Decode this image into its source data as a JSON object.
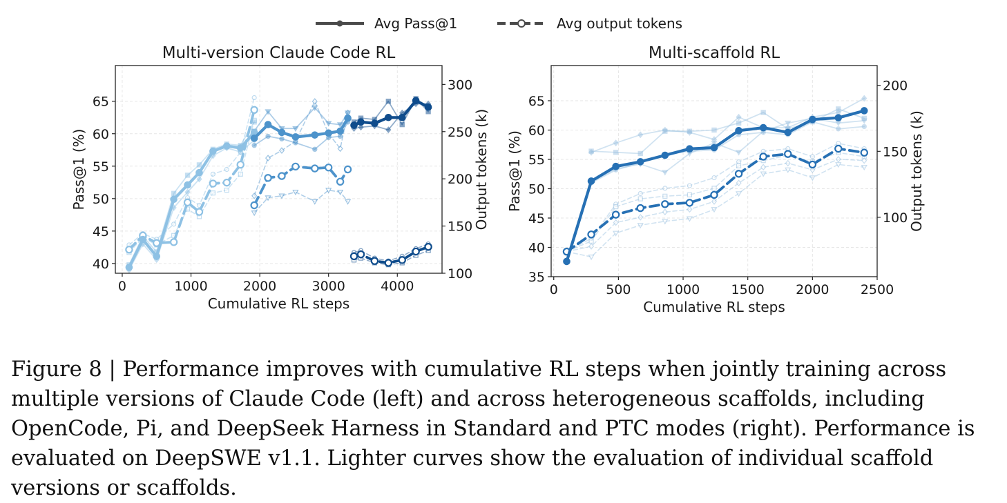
{
  "legend": {
    "pass_label": "Avg Pass@1",
    "tokens_label": "Avg output tokens"
  },
  "caption": "Figure 8 | Performance improves with cumulative RL steps when jointly training across multiple versions of Claude Code (left) and across heterogeneous scaffolds, including OpenCode, Pi, and DeepSeek Harness in Standard and PTC modes (right). Performance is evaluated on DeepSWE v1.1. Lighter curves show the evaluation of individual scaffold versions or scaffolds.",
  "chart_data": [
    {
      "type": "line",
      "title": "Multi-version Claude Code RL",
      "xlabel": "Cumulative RL steps",
      "ylabel": "Pass@1 (%)",
      "y2label": "Output tokens (k)",
      "xlim": [
        -100,
        4650
      ],
      "ylim": [
        38.5,
        70.5
      ],
      "y2lim": [
        100,
        320
      ],
      "xticks": [
        0,
        1000,
        2000,
        3000,
        4000
      ],
      "yticks": [
        40,
        45,
        50,
        55,
        60,
        65
      ],
      "y2ticks": [
        100,
        150,
        200,
        250,
        300
      ],
      "grid": true,
      "colors": {
        "light": "#8ec1e4",
        "mid": "#4d93cb",
        "dark": "#0f4c8c"
      },
      "avg_pass": [
        {
          "color": "light",
          "x": [
            100,
            300,
            500,
            750,
            950,
            1120,
            1320,
            1520,
            1720,
            1920
          ],
          "y": [
            39.4,
            43.7,
            41.1,
            49.9,
            52.1,
            54.0,
            57.3,
            58.1,
            57.8,
            60.2
          ]
        },
        {
          "color": "mid",
          "x": [
            1920,
            2120,
            2320,
            2520,
            2800,
            3000,
            3170,
            3280
          ],
          "y": [
            59.3,
            61.4,
            60.2,
            59.5,
            59.8,
            60.1,
            60.4,
            62.4
          ]
        },
        {
          "color": "dark",
          "x": [
            3370,
            3470,
            3670,
            3870,
            4070,
            4270,
            4450
          ],
          "y": [
            61.3,
            61.8,
            61.6,
            62.5,
            62.5,
            65.1,
            64.1
          ]
        }
      ],
      "avg_tokens": [
        {
          "color": "light",
          "x": [
            100,
            300,
            500,
            750,
            950,
            1120,
            1320,
            1520,
            1720,
            1920
          ],
          "y": [
            125,
            140,
            132,
            133,
            175,
            165,
            195,
            196,
            215,
            273
          ]
        },
        {
          "color": "mid",
          "x": [
            1920,
            2120,
            2320,
            2520,
            2800,
            3000,
            3170,
            3280
          ],
          "y": [
            172,
            201,
            203,
            213,
            211,
            212,
            197,
            210
          ]
        },
        {
          "color": "dark",
          "x": [
            3370,
            3470,
            3670,
            3870,
            4070,
            4270,
            4450
          ],
          "y": [
            118,
            120,
            113,
            111,
            114,
            123,
            128
          ]
        }
      ],
      "light_pass": [
        {
          "color": "light",
          "x": [
            100,
            300,
            500,
            750,
            950,
            1120,
            1320,
            1520,
            1720,
            1920
          ],
          "y": [
            39.8,
            44.2,
            41.8,
            50.8,
            53.6,
            55.2,
            57.6,
            58.4,
            58.2,
            61.8
          ]
        },
        {
          "color": "light",
          "x": [
            100,
            300,
            500,
            750,
            950,
            1120,
            1320,
            1520,
            1720,
            1920
          ],
          "y": [
            39.0,
            43.0,
            40.6,
            48.6,
            51.0,
            53.0,
            56.6,
            57.8,
            57.2,
            59.0
          ]
        },
        {
          "color": "mid",
          "x": [
            1920,
            2120,
            2320,
            2520,
            2800,
            3000,
            3170,
            3280
          ],
          "y": [
            60.4,
            63.4,
            60.8,
            60.8,
            64.0,
            61.6,
            61.4,
            63.2
          ]
        },
        {
          "color": "mid",
          "x": [
            1920,
            2120,
            2320,
            2520,
            2800,
            3000,
            3170,
            3280
          ],
          "y": [
            58.2,
            59.6,
            59.2,
            58.6,
            57.6,
            59.4,
            59.6,
            61.8
          ]
        },
        {
          "color": "dark",
          "x": [
            3370,
            3470,
            3670,
            3870,
            4070,
            4270,
            4450
          ],
          "y": [
            61.8,
            62.4,
            62.2,
            65.0,
            61.4,
            65.4,
            63.4
          ]
        },
        {
          "color": "dark",
          "x": [
            3370,
            3470,
            3670,
            3870,
            4070,
            4270,
            4450
          ],
          "y": [
            60.8,
            61.0,
            61.2,
            60.6,
            63.2,
            64.6,
            64.6
          ]
        }
      ],
      "light_tokens": [
        {
          "color": "light",
          "x": [
            100,
            300,
            500,
            750,
            950,
            1120,
            1320,
            1520,
            1720,
            1920
          ],
          "y": [
            130,
            142,
            136,
            152,
            180,
            172,
            205,
            210,
            228,
            286
          ]
        },
        {
          "color": "light",
          "x": [
            100,
            300,
            500,
            750,
            950,
            1120,
            1320,
            1520,
            1720,
            1920
          ],
          "y": [
            122,
            138,
            130,
            140,
            168,
            160,
            185,
            188,
            205,
            262
          ]
        },
        {
          "color": "mid",
          "x": [
            1920,
            2120,
            2320,
            2520,
            2800,
            3000,
            3170,
            3280
          ],
          "y": [
            182,
            222,
            230,
            240,
            282,
            248,
            232,
            270
          ]
        },
        {
          "color": "mid",
          "x": [
            1920,
            2120,
            2320,
            2520,
            2800,
            3000,
            3170,
            3280
          ],
          "y": [
            164,
            180,
            182,
            186,
            176,
            188,
            186,
            176
          ]
        },
        {
          "color": "dark",
          "x": [
            3370,
            3470,
            3670,
            3870,
            4070,
            4270,
            4450
          ],
          "y": [
            122,
            124,
            116,
            113,
            118,
            126,
            131
          ]
        },
        {
          "color": "dark",
          "x": [
            3370,
            3470,
            3670,
            3870,
            4070,
            4270,
            4450
          ],
          "y": [
            114,
            116,
            111,
            109,
            111,
            119,
            124
          ]
        }
      ]
    },
    {
      "type": "line",
      "title": "Multi-scaffold RL",
      "xlabel": "Cumulative RL steps",
      "ylabel": "Pass@1 (%)",
      "y2label": "Output tokens (k)",
      "xlim": [
        -20,
        2500
      ],
      "ylim": [
        35,
        71
      ],
      "y2lim": [
        55,
        215
      ],
      "xticks": [
        0,
        500,
        1000,
        1500,
        2000,
        2500
      ],
      "yticks": [
        35,
        40,
        45,
        50,
        55,
        60,
        65
      ],
      "y2ticks": [
        100,
        150,
        200
      ],
      "grid": true,
      "colors": {
        "main": "#2670b4",
        "light": "#9ac0e0"
      },
      "avg_pass": [
        {
          "color": "main",
          "x": [
            100,
            290,
            480,
            670,
            860,
            1050,
            1240,
            1430,
            1620,
            1810,
            2000,
            2200,
            2400
          ],
          "y": [
            37.6,
            51.3,
            53.8,
            54.6,
            55.7,
            56.8,
            57.0,
            59.9,
            60.4,
            59.6,
            61.8,
            62.1,
            63.3
          ]
        }
      ],
      "avg_tokens": [
        {
          "color": "main",
          "x": [
            100,
            290,
            480,
            670,
            860,
            1050,
            1240,
            1430,
            1620,
            1810,
            2000,
            2200,
            2400
          ],
          "y": [
            74,
            87,
            102,
            107,
            110,
            111,
            117,
            133,
            146,
            148,
            140,
            152,
            149
          ]
        }
      ],
      "light_pass": [
        {
          "color": "light",
          "x": [
            290,
            480,
            670,
            860,
            1050,
            1240,
            1430,
            1620,
            1810,
            2000,
            2200,
            2400
          ],
          "y": [
            56.4,
            56.2,
            56.0,
            59.8,
            59.8,
            60.0,
            61.2,
            63.0,
            60.2,
            61.4,
            63.6,
            62.0
          ]
        },
        {
          "color": "light",
          "x": [
            290,
            480,
            670,
            860,
            1050,
            1240,
            1430,
            1620,
            1810,
            2000,
            2200,
            2400
          ],
          "y": [
            56.2,
            57.8,
            59.2,
            60.0,
            59.6,
            58.4,
            62.2,
            60.4,
            60.4,
            62.2,
            63.0,
            65.4
          ]
        },
        {
          "color": "light",
          "x": [
            290,
            480,
            670,
            860,
            1050,
            1240,
            1430,
            1620,
            1810,
            2000,
            2200,
            2400
          ],
          "y": [
            51.2,
            53.4,
            54.2,
            52.8,
            56.0,
            57.8,
            56.2,
            59.8,
            61.2,
            62.0,
            61.2,
            61.6
          ]
        },
        {
          "color": "light",
          "x": [
            290,
            480,
            670,
            860,
            1050,
            1240,
            1430,
            1620,
            1810,
            2000,
            2200,
            2400
          ],
          "y": [
            51.0,
            53.2,
            54.4,
            55.8,
            56.4,
            56.6,
            59.2,
            59.6,
            59.2,
            61.4,
            60.2,
            60.6
          ]
        }
      ],
      "light_tokens": [
        {
          "color": "light",
          "x": [
            100,
            290,
            480,
            670,
            860,
            1050,
            1240,
            1430,
            1620,
            1810,
            2000,
            2200,
            2400
          ],
          "y": [
            74,
            84,
            110,
            118,
            122,
            124,
            130,
            142,
            150,
            152,
            146,
            156,
            152
          ]
        },
        {
          "color": "light",
          "x": [
            100,
            290,
            480,
            670,
            860,
            1050,
            1240,
            1430,
            1620,
            1810,
            2000,
            2200,
            2400
          ],
          "y": [
            74,
            82,
            108,
            114,
            116,
            117,
            122,
            139,
            143,
            147,
            142,
            149,
            146
          ]
        },
        {
          "color": "light",
          "x": [
            100,
            290,
            480,
            670,
            860,
            1050,
            1240,
            1430,
            1620,
            1810,
            2000,
            2200,
            2400
          ],
          "y": [
            74,
            78,
            96,
            100,
            104,
            106,
            112,
            126,
            138,
            141,
            136,
            144,
            143
          ]
        },
        {
          "color": "light",
          "x": [
            100,
            290,
            480,
            670,
            860,
            1050,
            1240,
            1430,
            1620,
            1810,
            2000,
            2200,
            2400
          ],
          "y": [
            74,
            70,
            88,
            94,
            97,
            99,
            106,
            118,
            133,
            136,
            130,
            140,
            138
          ]
        }
      ]
    }
  ]
}
